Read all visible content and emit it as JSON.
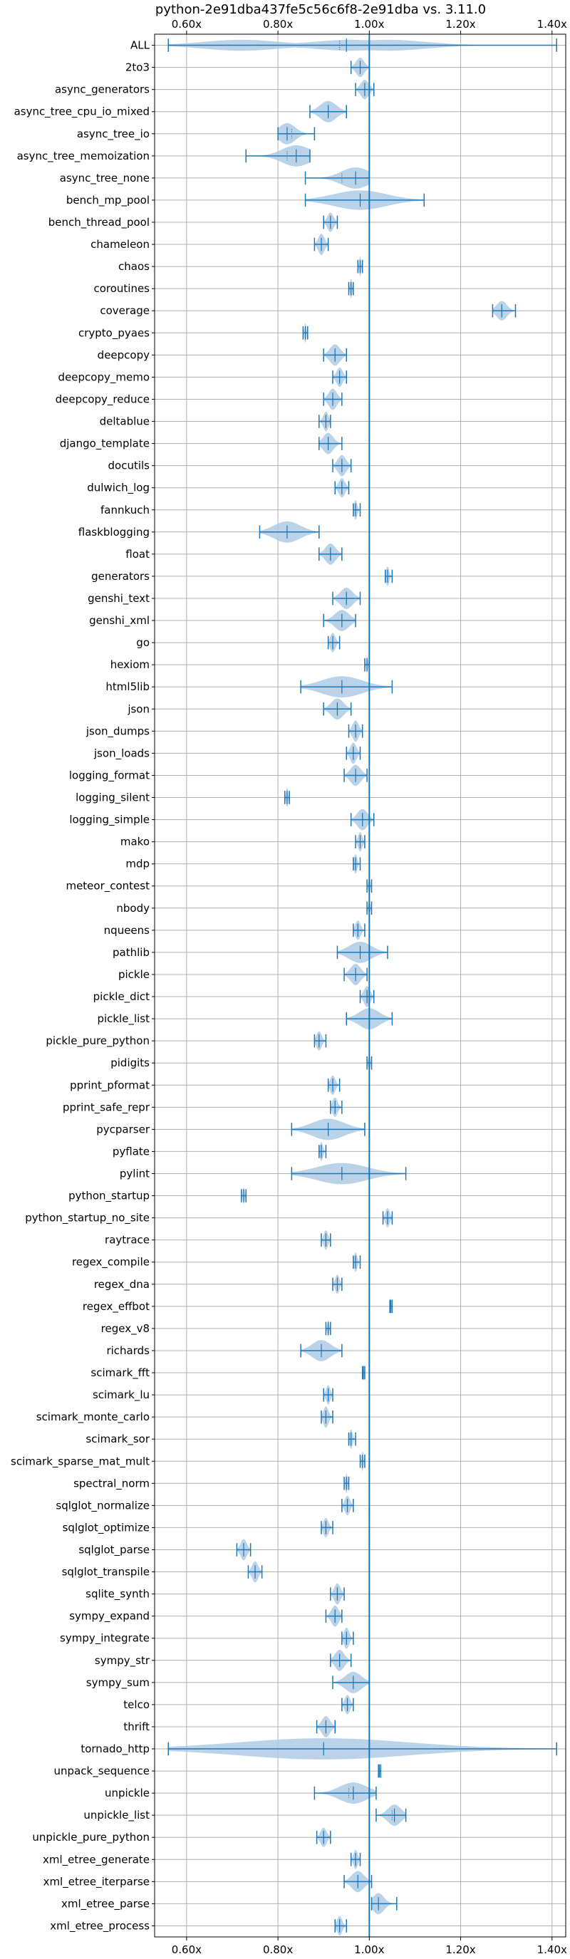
{
  "chart_data": {
    "type": "violin",
    "title": "python-2e91dba437fe5c56c6f8-2e91dba vs. 3.11.0",
    "xlabel": "",
    "ylabel": "",
    "xlim": [
      0.53,
      1.43
    ],
    "x_ticks": [
      0.6,
      0.8,
      1.0,
      1.2,
      1.4
    ],
    "x_tick_labels": [
      "0.60x",
      "0.80x",
      "1.00x",
      "1.20x",
      "1.40x"
    ],
    "grid": true,
    "reference_line": 1.0,
    "color": "#1f77b4",
    "violin_color": "#aecbe5",
    "series": [
      {
        "name": "ALL",
        "min": 0.56,
        "max": 1.41,
        "mean": 0.935,
        "median": 0.95,
        "width": 0.08,
        "peaks": [
          0.72,
          0.96,
          1.04
        ]
      },
      {
        "name": "2to3",
        "min": 0.96,
        "max": 1.0,
        "mean": 0.98,
        "median": 0.98,
        "width": 0.2
      },
      {
        "name": "async_generators",
        "min": 0.97,
        "max": 1.01,
        "mean": 0.99,
        "median": 0.99,
        "width": 0.2
      },
      {
        "name": "async_tree_cpu_io_mixed",
        "min": 0.87,
        "max": 0.95,
        "mean": 0.91,
        "median": 0.91,
        "width": 0.3
      },
      {
        "name": "async_tree_io",
        "min": 0.8,
        "max": 0.88,
        "mean": 0.83,
        "median": 0.82,
        "width": 0.3
      },
      {
        "name": "async_tree_memoization",
        "min": 0.73,
        "max": 0.87,
        "mean": 0.82,
        "median": 0.84,
        "width": 0.35
      },
      {
        "name": "async_tree_none",
        "min": 0.86,
        "max": 1.0,
        "mean": 0.94,
        "median": 0.97,
        "width": 0.35
      },
      {
        "name": "bench_mp_pool",
        "min": 0.86,
        "max": 1.12,
        "mean": 0.98,
        "median": 0.98,
        "width": 0.2
      },
      {
        "name": "bench_thread_pool",
        "min": 0.9,
        "max": 0.93,
        "mean": 0.915,
        "median": 0.915,
        "width": 0.2
      },
      {
        "name": "chameleon",
        "min": 0.88,
        "max": 0.91,
        "mean": 0.895,
        "median": 0.895,
        "width": 0.25
      },
      {
        "name": "chaos",
        "min": 0.975,
        "max": 0.985,
        "mean": 0.98,
        "median": 0.98,
        "width": 0.2
      },
      {
        "name": "coroutines",
        "min": 0.955,
        "max": 0.965,
        "mean": 0.96,
        "median": 0.96,
        "width": 0.2
      },
      {
        "name": "coverage",
        "min": 1.27,
        "max": 1.32,
        "mean": 1.29,
        "median": 1.29,
        "width": 0.2
      },
      {
        "name": "crypto_pyaes",
        "min": 0.855,
        "max": 0.865,
        "mean": 0.86,
        "median": 0.86,
        "width": 0.2
      },
      {
        "name": "deepcopy",
        "min": 0.9,
        "max": 0.95,
        "mean": 0.925,
        "median": 0.925,
        "width": 0.25
      },
      {
        "name": "deepcopy_memo",
        "min": 0.92,
        "max": 0.95,
        "mean": 0.935,
        "median": 0.935,
        "width": 0.2
      },
      {
        "name": "deepcopy_reduce",
        "min": 0.9,
        "max": 0.94,
        "mean": 0.92,
        "median": 0.92,
        "width": 0.25
      },
      {
        "name": "deltablue",
        "min": 0.89,
        "max": 0.915,
        "mean": 0.905,
        "median": 0.905,
        "width": 0.2
      },
      {
        "name": "django_template",
        "min": 0.89,
        "max": 0.94,
        "mean": 0.91,
        "median": 0.91,
        "width": 0.25
      },
      {
        "name": "docutils",
        "min": 0.92,
        "max": 0.96,
        "mean": 0.94,
        "median": 0.94,
        "width": 0.25
      },
      {
        "name": "dulwich_log",
        "min": 0.925,
        "max": 0.955,
        "mean": 0.94,
        "median": 0.94,
        "width": 0.2
      },
      {
        "name": "fannkuch",
        "min": 0.965,
        "max": 0.98,
        "mean": 0.97,
        "median": 0.97,
        "width": 0.2
      },
      {
        "name": "flaskblogging",
        "min": 0.76,
        "max": 0.89,
        "mean": 0.82,
        "median": 0.82,
        "width": 0.3
      },
      {
        "name": "float",
        "min": 0.89,
        "max": 0.94,
        "mean": 0.915,
        "median": 0.915,
        "width": 0.25
      },
      {
        "name": "generators",
        "min": 1.035,
        "max": 1.05,
        "mean": 1.04,
        "median": 1.04,
        "width": 0.2
      },
      {
        "name": "genshi_text",
        "min": 0.92,
        "max": 0.98,
        "mean": 0.95,
        "median": 0.95,
        "width": 0.3
      },
      {
        "name": "genshi_xml",
        "min": 0.9,
        "max": 0.97,
        "mean": 0.94,
        "median": 0.94,
        "width": 0.3
      },
      {
        "name": "go",
        "min": 0.91,
        "max": 0.935,
        "mean": 0.92,
        "median": 0.92,
        "width": 0.2
      },
      {
        "name": "hexiom",
        "min": 0.99,
        "max": 1.0,
        "mean": 0.995,
        "median": 0.995,
        "width": 0.15
      },
      {
        "name": "html5lib",
        "min": 0.85,
        "max": 1.05,
        "mean": 0.94,
        "median": 0.94,
        "width": 0.3
      },
      {
        "name": "json",
        "min": 0.9,
        "max": 0.96,
        "mean": 0.93,
        "median": 0.93,
        "width": 0.3
      },
      {
        "name": "json_dumps",
        "min": 0.955,
        "max": 0.985,
        "mean": 0.97,
        "median": 0.97,
        "width": 0.25
      },
      {
        "name": "json_loads",
        "min": 0.95,
        "max": 0.98,
        "mean": 0.965,
        "median": 0.965,
        "width": 0.25
      },
      {
        "name": "logging_format",
        "min": 0.945,
        "max": 0.995,
        "mean": 0.97,
        "median": 0.97,
        "width": 0.25
      },
      {
        "name": "logging_silent",
        "min": 0.815,
        "max": 0.825,
        "mean": 0.82,
        "median": 0.82,
        "width": 0.2
      },
      {
        "name": "logging_simple",
        "min": 0.96,
        "max": 1.01,
        "mean": 0.985,
        "median": 0.985,
        "width": 0.25
      },
      {
        "name": "mako",
        "min": 0.97,
        "max": 0.99,
        "mean": 0.98,
        "median": 0.98,
        "width": 0.2
      },
      {
        "name": "mdp",
        "min": 0.965,
        "max": 0.98,
        "mean": 0.97,
        "median": 0.97,
        "width": 0.2
      },
      {
        "name": "meteor_contest",
        "min": 0.995,
        "max": 1.005,
        "mean": 1.0,
        "median": 1.0,
        "width": 0.15
      },
      {
        "name": "nbody",
        "min": 0.995,
        "max": 1.005,
        "mean": 1.0,
        "median": 1.0,
        "width": 0.15
      },
      {
        "name": "nqueens",
        "min": 0.965,
        "max": 0.99,
        "mean": 0.975,
        "median": 0.975,
        "width": 0.2
      },
      {
        "name": "pathlib",
        "min": 0.93,
        "max": 1.04,
        "mean": 0.98,
        "median": 0.98,
        "width": 0.3
      },
      {
        "name": "pickle",
        "min": 0.945,
        "max": 0.995,
        "mean": 0.97,
        "median": 0.97,
        "width": 0.3
      },
      {
        "name": "pickle_dict",
        "min": 0.98,
        "max": 1.01,
        "mean": 0.995,
        "median": 0.995,
        "width": 0.25
      },
      {
        "name": "pickle_list",
        "min": 0.95,
        "max": 1.05,
        "mean": 1.0,
        "median": 1.0,
        "width": 0.3
      },
      {
        "name": "pickle_pure_python",
        "min": 0.88,
        "max": 0.905,
        "mean": 0.89,
        "median": 0.89,
        "width": 0.2
      },
      {
        "name": "pidigits",
        "min": 0.995,
        "max": 1.005,
        "mean": 1.0,
        "median": 1.0,
        "width": 0.15
      },
      {
        "name": "pprint_pformat",
        "min": 0.91,
        "max": 0.935,
        "mean": 0.92,
        "median": 0.92,
        "width": 0.2
      },
      {
        "name": "pprint_safe_repr",
        "min": 0.915,
        "max": 0.94,
        "mean": 0.925,
        "median": 0.925,
        "width": 0.2
      },
      {
        "name": "pycparser",
        "min": 0.83,
        "max": 0.99,
        "mean": 0.91,
        "median": 0.91,
        "width": 0.3
      },
      {
        "name": "pyflate",
        "min": 0.89,
        "max": 0.905,
        "mean": 0.895,
        "median": 0.895,
        "width": 0.2
      },
      {
        "name": "pylint",
        "min": 0.83,
        "max": 1.08,
        "mean": 0.94,
        "median": 0.94,
        "width": 0.3
      },
      {
        "name": "python_startup",
        "min": 0.72,
        "max": 0.73,
        "mean": 0.725,
        "median": 0.725,
        "width": 0.15
      },
      {
        "name": "python_startup_no_site",
        "min": 1.03,
        "max": 1.05,
        "mean": 1.04,
        "median": 1.04,
        "width": 0.2
      },
      {
        "name": "raytrace",
        "min": 0.895,
        "max": 0.915,
        "mean": 0.905,
        "median": 0.905,
        "width": 0.2
      },
      {
        "name": "regex_compile",
        "min": 0.965,
        "max": 0.98,
        "mean": 0.97,
        "median": 0.97,
        "width": 0.2
      },
      {
        "name": "regex_dna",
        "min": 0.92,
        "max": 0.94,
        "mean": 0.93,
        "median": 0.93,
        "width": 0.2
      },
      {
        "name": "regex_effbot",
        "min": 1.045,
        "max": 1.05,
        "mean": 1.047,
        "median": 1.047,
        "width": 0.15
      },
      {
        "name": "regex_v8",
        "min": 0.905,
        "max": 0.915,
        "mean": 0.91,
        "median": 0.91,
        "width": 0.15
      },
      {
        "name": "richards",
        "min": 0.85,
        "max": 0.94,
        "mean": 0.895,
        "median": 0.895,
        "width": 0.35
      },
      {
        "name": "scimark_fft",
        "min": 0.985,
        "max": 0.99,
        "mean": 0.987,
        "median": 0.987,
        "width": 0.15
      },
      {
        "name": "scimark_lu",
        "min": 0.9,
        "max": 0.92,
        "mean": 0.91,
        "median": 0.91,
        "width": 0.2
      },
      {
        "name": "scimark_monte_carlo",
        "min": 0.895,
        "max": 0.92,
        "mean": 0.905,
        "median": 0.905,
        "width": 0.25
      },
      {
        "name": "scimark_sor",
        "min": 0.955,
        "max": 0.97,
        "mean": 0.96,
        "median": 0.96,
        "width": 0.2
      },
      {
        "name": "scimark_sparse_mat_mult",
        "min": 0.98,
        "max": 0.99,
        "mean": 0.985,
        "median": 0.985,
        "width": 0.2
      },
      {
        "name": "spectral_norm",
        "min": 0.945,
        "max": 0.955,
        "mean": 0.95,
        "median": 0.95,
        "width": 0.2
      },
      {
        "name": "sqlglot_normalize",
        "min": 0.94,
        "max": 0.965,
        "mean": 0.952,
        "median": 0.952,
        "width": 0.2
      },
      {
        "name": "sqlglot_optimize",
        "min": 0.895,
        "max": 0.92,
        "mean": 0.905,
        "median": 0.905,
        "width": 0.2
      },
      {
        "name": "sqlglot_parse",
        "min": 0.71,
        "max": 0.74,
        "mean": 0.725,
        "median": 0.725,
        "width": 0.25
      },
      {
        "name": "sqlglot_transpile",
        "min": 0.735,
        "max": 0.765,
        "mean": 0.75,
        "median": 0.75,
        "width": 0.25
      },
      {
        "name": "sqlite_synth",
        "min": 0.915,
        "max": 0.945,
        "mean": 0.93,
        "median": 0.93,
        "width": 0.25
      },
      {
        "name": "sympy_expand",
        "min": 0.905,
        "max": 0.94,
        "mean": 0.925,
        "median": 0.925,
        "width": 0.25
      },
      {
        "name": "sympy_integrate",
        "min": 0.94,
        "max": 0.965,
        "mean": 0.95,
        "median": 0.95,
        "width": 0.25
      },
      {
        "name": "sympy_str",
        "min": 0.915,
        "max": 0.96,
        "mean": 0.935,
        "median": 0.935,
        "width": 0.25
      },
      {
        "name": "sympy_sum",
        "min": 0.92,
        "max": 1.0,
        "mean": 0.965,
        "median": 0.965,
        "width": 0.3
      },
      {
        "name": "telco",
        "min": 0.94,
        "max": 0.965,
        "mean": 0.952,
        "median": 0.952,
        "width": 0.2
      },
      {
        "name": "thrift",
        "min": 0.885,
        "max": 0.925,
        "mean": 0.905,
        "median": 0.905,
        "width": 0.25
      },
      {
        "name": "tornado_http",
        "min": 0.56,
        "max": 1.41,
        "mean": 0.9,
        "median": 0.9,
        "width": 0.25
      },
      {
        "name": "unpack_sequence",
        "min": 1.02,
        "max": 1.025,
        "mean": 1.022,
        "median": 1.022,
        "width": 0.1
      },
      {
        "name": "unpickle",
        "min": 0.88,
        "max": 1.015,
        "mean": 0.955,
        "median": 0.965,
        "width": 0.3
      },
      {
        "name": "unpickle_list",
        "min": 1.015,
        "max": 1.08,
        "mean": 1.05,
        "median": 1.055,
        "width": 0.25
      },
      {
        "name": "unpickle_pure_python",
        "min": 0.885,
        "max": 0.915,
        "mean": 0.9,
        "median": 0.9,
        "width": 0.2
      },
      {
        "name": "xml_etree_generate",
        "min": 0.96,
        "max": 0.98,
        "mean": 0.97,
        "median": 0.97,
        "width": 0.2
      },
      {
        "name": "xml_etree_iterparse",
        "min": 0.945,
        "max": 1.005,
        "mean": 0.975,
        "median": 0.975,
        "width": 0.3
      },
      {
        "name": "xml_etree_parse",
        "min": 1.005,
        "max": 1.06,
        "mean": 1.02,
        "median": 1.02,
        "width": 0.25
      },
      {
        "name": "xml_etree_process",
        "min": 0.925,
        "max": 0.95,
        "mean": 0.935,
        "median": 0.935,
        "width": 0.2
      }
    ]
  }
}
